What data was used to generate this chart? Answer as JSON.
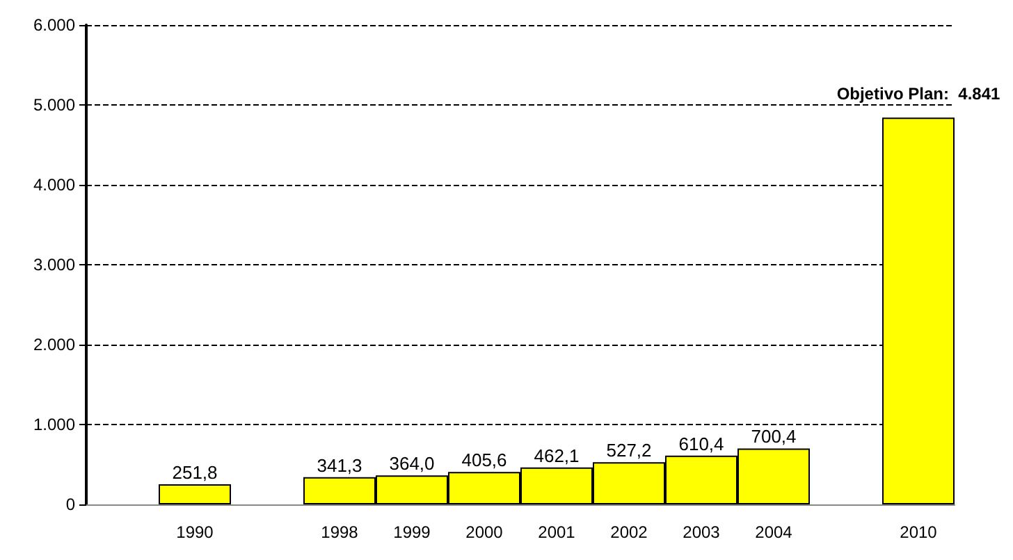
{
  "chart_data": {
    "type": "bar",
    "categories": [
      null,
      "1990",
      null,
      "1998",
      "1999",
      "2000",
      "2001",
      "2002",
      "2003",
      "2004",
      null,
      "2010"
    ],
    "values": [
      null,
      251.8,
      null,
      341.3,
      364.0,
      405.6,
      462.1,
      527.2,
      610.4,
      700.4,
      null,
      4841
    ],
    "value_labels": [
      null,
      "251,8",
      null,
      "341,3",
      "364,0",
      "405,6",
      "462,1",
      "527,2",
      "610,4",
      "700,4",
      null,
      null
    ],
    "color": "#ffff00",
    "ylim": [
      0,
      6000
    ],
    "yticks": [
      0,
      {
        "value": 1000,
        "label": "1.000"
      },
      {
        "value": 2000,
        "label": "2.000"
      },
      {
        "value": 3000,
        "label": "3.000"
      },
      {
        "value": 4000,
        "label": "4.000"
      },
      {
        "value": 5000,
        "label": "5.000"
      },
      {
        "value": 6000,
        "label": "6.000"
      }
    ],
    "grid": "y",
    "line_style": "dashed",
    "annotations": [
      {
        "text": "Objetivo Plan:  4.841",
        "x": "2010",
        "y": 4841
      }
    ]
  }
}
